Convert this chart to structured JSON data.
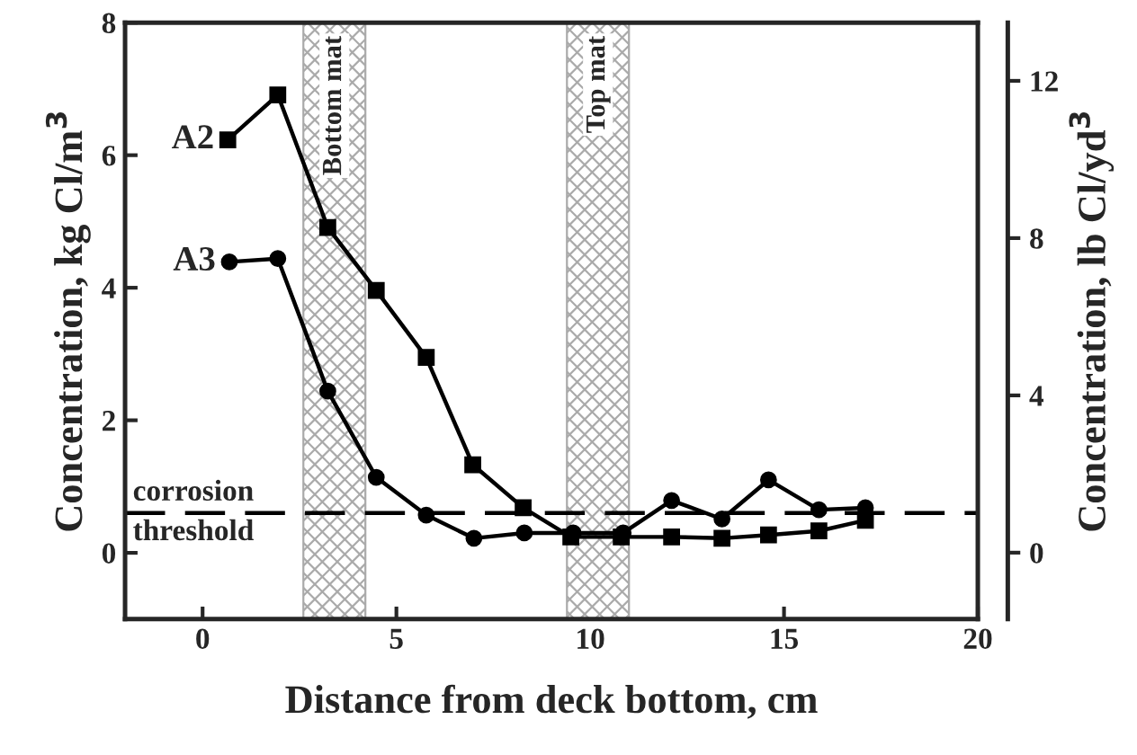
{
  "chart_data": {
    "type": "line",
    "xlabel": "Distance from deck bottom, cm",
    "ylabel": "Concentration, kg Cl/m$^{3}$",
    "y2label": "Concentration, lb Cl/yd$^{3}$",
    "series": [
      {
        "name": "A2",
        "color": "#000000",
        "marker": "square",
        "x": [
          0.65,
          1.94,
          3.23,
          4.48,
          5.77,
          6.97,
          8.27,
          9.5,
          10.8,
          12.1,
          13.4,
          14.6,
          15.9,
          17.1
        ],
        "values": [
          6.23,
          6.91,
          4.91,
          3.96,
          2.95,
          1.33,
          0.68,
          0.24,
          0.24,
          0.24,
          0.22,
          0.27,
          0.33,
          0.49
        ]
      },
      {
        "name": "A3",
        "color": "#000000",
        "marker": "circle",
        "x": [
          0.69,
          1.94,
          3.23,
          4.48,
          5.77,
          7.0,
          8.3,
          9.56,
          10.85,
          12.1,
          13.4,
          14.6,
          15.9,
          17.1
        ],
        "values": [
          4.39,
          4.44,
          2.44,
          1.14,
          0.57,
          0.22,
          0.3,
          0.3,
          0.3,
          0.79,
          0.51,
          1.1,
          0.65,
          0.68
        ]
      }
    ],
    "xlim": [
      -2,
      20
    ],
    "xticks": [
      0,
      5,
      10,
      15,
      20
    ],
    "ylim": [
      -1,
      8
    ],
    "yticks": [
      0,
      2,
      4,
      6,
      8
    ],
    "y2lim": [
      -1.69,
      13.48
    ],
    "y2ticks": [
      0,
      4,
      8,
      12
    ],
    "ref_lines": [
      {
        "axis": "y",
        "value": 0.6,
        "label": "corrosion\nthreshold",
        "color": "#000000",
        "line_style": "dashed"
      }
    ],
    "bands": [
      {
        "axis": "x",
        "from": 2.6,
        "to": 4.2,
        "label": "Bottom mat",
        "color": "#aaaaaa"
      },
      {
        "axis": "x",
        "from": 9.4,
        "to": 11.0,
        "label": "Top mat",
        "color": "#aaaaaa"
      }
    ],
    "legend": false,
    "grid": false
  }
}
